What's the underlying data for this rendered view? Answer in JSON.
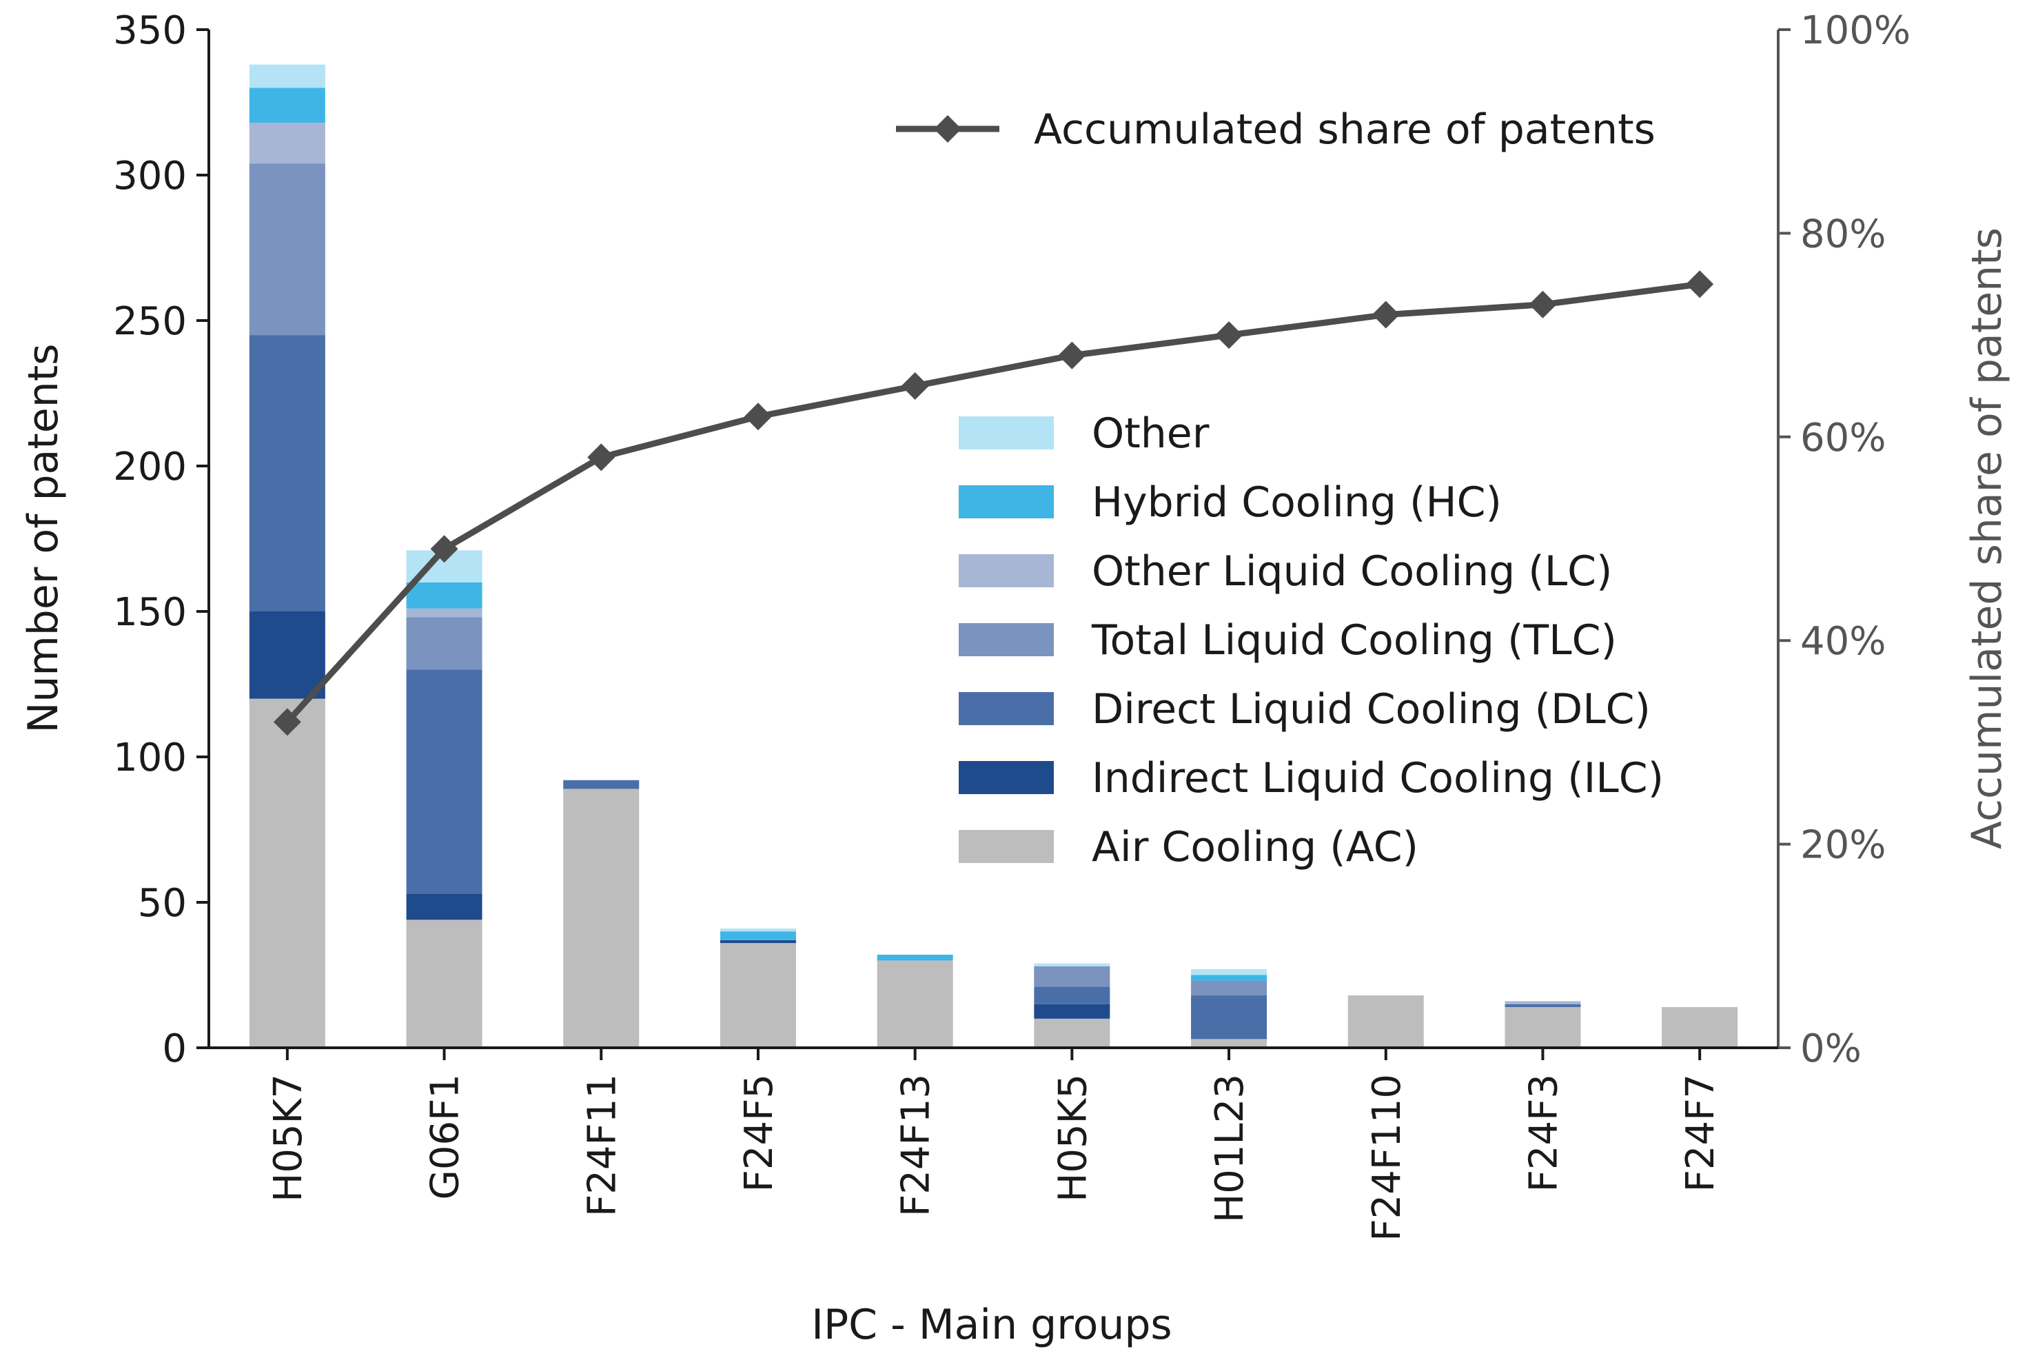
{
  "chart_data": {
    "type": "bar",
    "stacked": true,
    "categories": [
      "H05K7",
      "G06F1",
      "F24F11",
      "F24F5",
      "F24F13",
      "H05K5",
      "H01L23",
      "F24F110",
      "F24F3",
      "F24F7"
    ],
    "xlabel": "IPC - Main groups",
    "ylabel": "Number of patents",
    "ylabel_right": "Accumulated share of patents",
    "ylim": [
      0,
      350
    ],
    "ylim_right": [
      0,
      100
    ],
    "yticks": [
      0,
      50,
      100,
      150,
      200,
      250,
      300,
      350
    ],
    "yticks_labels": [
      "0",
      "50",
      "100",
      "150",
      "200",
      "250",
      "300",
      "350"
    ],
    "yticks_right": [
      0,
      20,
      40,
      60,
      80,
      100
    ],
    "yticks_right_labels": [
      "0%",
      "20%",
      "40%",
      "60%",
      "80%",
      "100%"
    ],
    "series": [
      {
        "name": "Air Cooling (AC)",
        "color": "#bdbdbd",
        "values": [
          120,
          44,
          89,
          36,
          30,
          10,
          3,
          18,
          14,
          14
        ]
      },
      {
        "name": "Indirect Liquid Cooling (ILC)",
        "color": "#1f4a8c",
        "values": [
          30,
          9,
          0,
          1,
          0,
          5,
          0,
          0,
          0,
          0
        ]
      },
      {
        "name": "Direct Liquid Cooling (DLC)",
        "color": "#4a6ea8",
        "values": [
          95,
          77,
          3,
          0,
          0,
          6,
          15,
          0,
          1,
          0
        ]
      },
      {
        "name": "Total Liquid Cooling (TLC)",
        "color": "#7a93bf",
        "values": [
          59,
          18,
          0,
          0,
          0,
          7,
          5,
          0,
          0,
          0
        ]
      },
      {
        "name": "Other Liquid Cooling (LC)",
        "color": "#a6b6d4",
        "values": [
          14,
          3,
          0,
          0,
          0,
          0,
          0,
          0,
          1,
          0
        ]
      },
      {
        "name": "Hybrid Cooling (HC)",
        "color": "#3fb5e6",
        "values": [
          12,
          9,
          0,
          3,
          2,
          0,
          2,
          0,
          0,
          0
        ]
      },
      {
        "name": "Other",
        "color": "#b3e3f5",
        "values": [
          8,
          11,
          0,
          1,
          0,
          1,
          2,
          0,
          0,
          0
        ]
      }
    ],
    "line": {
      "name": "Accumulated share of patents",
      "color": "#4d4d4d",
      "axis": "right",
      "marker": "diamond",
      "values": [
        32,
        49,
        58,
        62,
        65,
        68,
        70,
        72,
        73,
        75
      ]
    },
    "legend_order": [
      "Other",
      "Hybrid Cooling (HC)",
      "Other Liquid Cooling (LC)",
      "Total Liquid Cooling (TLC)",
      "Direct Liquid Cooling (DLC)",
      "Indirect Liquid Cooling (ILC)",
      "Air Cooling (AC)"
    ],
    "legend_placement": "center-right",
    "line_legend_placement": "top-right",
    "grid": false
  }
}
